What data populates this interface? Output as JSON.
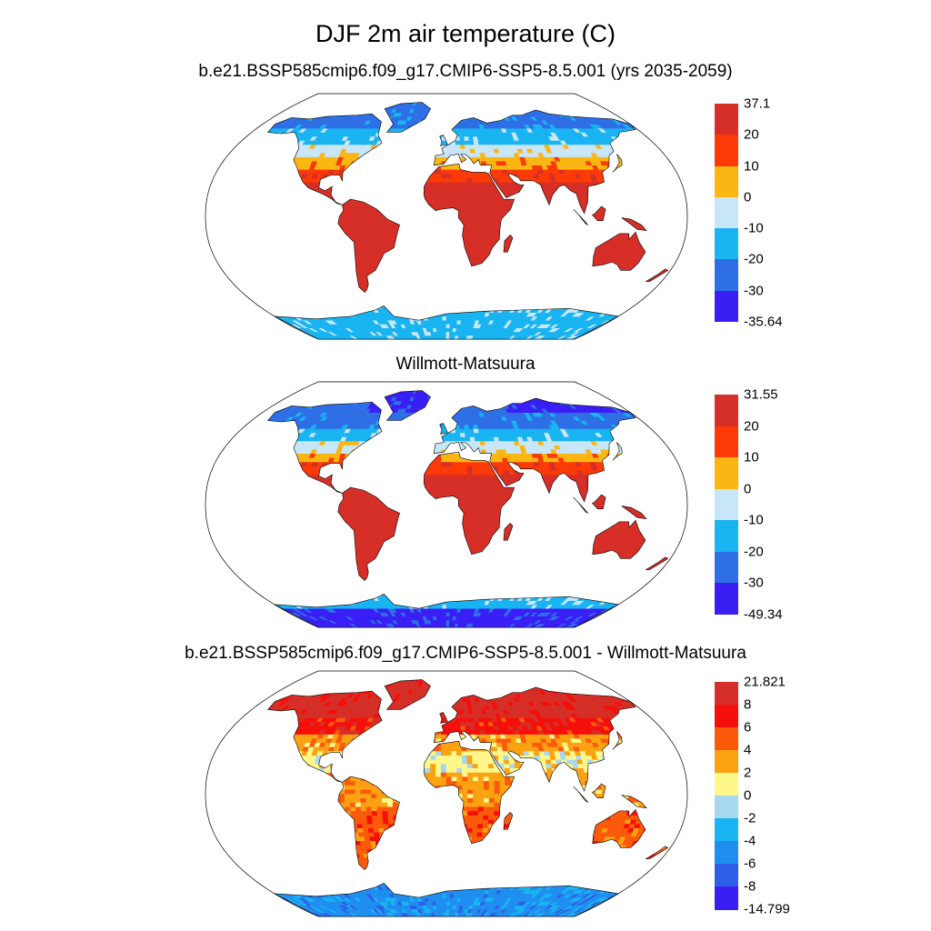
{
  "figure": {
    "title": "DJF 2m air temperature (C)",
    "panels": [
      {
        "id": "model",
        "subtitle": "b.e21.BSSP585cmip6.f09_g17.CMIP6-SSP5-8.5.001 (yrs 2035-2059)",
        "colorbar": {
          "labels": [
            "37.1",
            "20",
            "10",
            "0",
            "-10",
            "-20",
            "-30",
            "-35.64"
          ],
          "colors": [
            "#d62f27",
            "#fb3a08",
            "#fbb613",
            "#c7e6f8",
            "#19b4f2",
            "#2f6fe6",
            "#3a1ff5"
          ]
        }
      },
      {
        "id": "obs",
        "subtitle": "Willmott-Matsuura",
        "colorbar": {
          "labels": [
            "31.55",
            "20",
            "10",
            "0",
            "-10",
            "-20",
            "-30",
            "-49.34"
          ],
          "colors": [
            "#d62f27",
            "#fb3a08",
            "#fbb613",
            "#c7e6f8",
            "#19b4f2",
            "#2f6fe6",
            "#3a1ff5"
          ]
        }
      },
      {
        "id": "diff",
        "subtitle": "b.e21.BSSP585cmip6.f09_g17.CMIP6-SSP5-8.5.001 - Willmott-Matsuura",
        "colorbar": {
          "labels": [
            "21.821",
            "8",
            "6",
            "4",
            "2",
            "0",
            "-2",
            "-4",
            "-6",
            "-8",
            "-14.799"
          ],
          "colors": [
            "#d62f27",
            "#f50f0a",
            "#fb5a0b",
            "#fba213",
            "#fff78a",
            "#a8d8f0",
            "#19b4f2",
            "#1f8ef0",
            "#2f5fe6",
            "#3a1ff5"
          ]
        }
      }
    ]
  }
}
